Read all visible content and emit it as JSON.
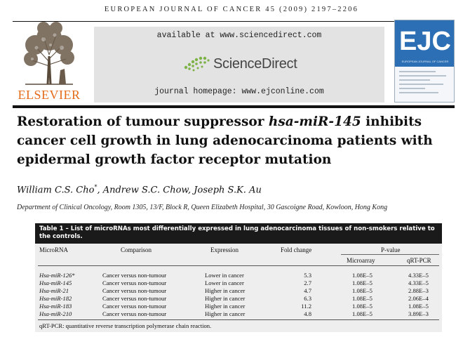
{
  "header": {
    "journal_line": "EUROPEAN JOURNAL OF CANCER 45 (2009) 2197–2206",
    "publisher_logo": "ELSEVIER",
    "available_at": "available at www.sciencedirect.com",
    "sciencedirect": "ScienceDirect",
    "homepage": "journal homepage: www.ejconline.com",
    "cover_logo": "EJC",
    "cover_subtitle": "EUROPEAN JOURNAL OF CANCER"
  },
  "article": {
    "title_part1": "Restoration of tumour suppressor ",
    "title_gene": "hsa-miR-145",
    "title_part2": " inhibits cancer cell growth in lung adenocarcinoma patients with epidermal growth factor receptor mutation",
    "author1": "William C.S. Cho",
    "author1_mark": "*",
    "authors_rest": ", Andrew S.C. Chow, Joseph S.K. Au",
    "affiliation": "Department of Clinical Oncology, Room 1305, 13/F, Block R, Queen Elizabeth Hospital, 30 Gascoigne Road, Kowloon, Hong Kong"
  },
  "table": {
    "caption": "Table 1 – List of microRNAs most differentially expressed in lung adenocarcinoma tissues of non-smokers relative to the controls.",
    "headers": {
      "microrna": "MicroRNA",
      "comparison": "Comparison",
      "expression": "Expression",
      "fold_change": "Fold change",
      "pvalue": "P-value",
      "microarray": "Microarray",
      "qrtpcr": "qRT-PCR"
    },
    "rows": [
      {
        "mirna": "Hsa-miR-126*",
        "comparison": "Cancer versus non-tumour",
        "expression": "Lower in cancer",
        "fold": "5.3",
        "microarray": "1.08E–5",
        "qrtpcr": "4.33E–5"
      },
      {
        "mirna": "Hsa-miR-145",
        "comparison": "Cancer versus non-tumour",
        "expression": "Lower in cancer",
        "fold": "2.7",
        "microarray": "1.08E–5",
        "qrtpcr": "4.33E–5"
      },
      {
        "mirna": "Hsa-miR-21",
        "comparison": "Cancer versus non-tumour",
        "expression": "Higher in cancer",
        "fold": "4.7",
        "microarray": "1.08E–5",
        "qrtpcr": "2.88E–3"
      },
      {
        "mirna": "Hsa-miR-182",
        "comparison": "Cancer versus non-tumour",
        "expression": "Higher in cancer",
        "fold": "6.3",
        "microarray": "1.08E–5",
        "qrtpcr": "2.06E–4"
      },
      {
        "mirna": "Hsa-miR-183",
        "comparison": "Cancer versus non-tumour",
        "expression": "Higher in cancer",
        "fold": "11.2",
        "microarray": "1.08E–5",
        "qrtpcr": "1.08E–5"
      },
      {
        "mirna": "Hsa-miR-210",
        "comparison": "Cancer versus non-tumour",
        "expression": "Higher in cancer",
        "fold": "4.8",
        "microarray": "1.08E–5",
        "qrtpcr": "3.89E–3"
      }
    ],
    "footnote": "qRT-PCR: quantitative reverse transcription polymerase chain reaction."
  },
  "colors": {
    "elsevier_orange": "#e46b1a",
    "ejc_blue": "#2d6fb4",
    "sciencedirect_green": "#7db346",
    "banner_gray": "#e3e3e3"
  }
}
